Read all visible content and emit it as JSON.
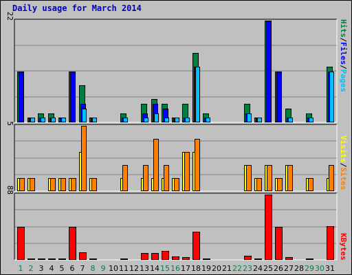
{
  "chart_data": {
    "type": "bar",
    "title": "Daily usage for March 2014",
    "categories": [
      "1",
      "2",
      "3",
      "4",
      "5",
      "6",
      "7",
      "8",
      "9",
      "10",
      "11",
      "12",
      "13",
      "14",
      "15",
      "16",
      "17",
      "18",
      "19",
      "20",
      "21",
      "22",
      "23",
      "24",
      "25",
      "26",
      "27",
      "28",
      "29",
      "30",
      "31"
    ],
    "weekend_days": [
      "1",
      "2",
      "8",
      "9",
      "15",
      "16",
      "22",
      "23",
      "29",
      "30"
    ],
    "panels": [
      {
        "name": "pages-files-hits",
        "axis_max_label": "22",
        "ylim": [
          0,
          22
        ],
        "legend": [
          "Pages",
          "/",
          "Files",
          "/",
          "Hits"
        ],
        "series": [
          {
            "name": "Hits",
            "values": [
              11,
              1,
              2,
              2,
              1,
              11,
              8,
              1,
              0,
              0,
              2,
              0,
              4,
              5,
              4,
              1,
              4,
              15,
              2,
              0,
              0,
              0,
              4,
              1,
              22,
              11,
              3,
              0,
              2,
              0,
              12
            ]
          },
          {
            "name": "Files",
            "values": [
              11,
              1,
              1,
              1,
              1,
              11,
              4,
              1,
              0,
              0,
              1,
              0,
              2,
              4,
              3,
              1,
              1,
              12,
              1,
              0,
              0,
              0,
              2,
              1,
              22,
              11,
              1,
              0,
              1,
              0,
              11
            ]
          },
          {
            "name": "Pages",
            "values": [
              0,
              1,
              1,
              1,
              1,
              0,
              3,
              1,
              0,
              0,
              1,
              0,
              1,
              2,
              1,
              1,
              1,
              12,
              1,
              0,
              0,
              0,
              2,
              1,
              0,
              0,
              1,
              0,
              1,
              0,
              11
            ]
          }
        ]
      },
      {
        "name": "visits-sites",
        "axis_max_label": "5",
        "ylim": [
          0,
          5
        ],
        "legend": [
          "Sites",
          "/",
          "Visits"
        ],
        "series": [
          {
            "name": "Visits",
            "values": [
              1,
              1,
              0,
              1,
              1,
              1,
              3,
              1,
              0,
              0,
              1,
              0,
              1,
              1,
              1,
              1,
              3,
              3,
              0,
              0,
              0,
              0,
              2,
              1,
              2,
              1,
              2,
              0,
              1,
              0,
              1
            ]
          },
          {
            "name": "Sites",
            "values": [
              1,
              1,
              0,
              1,
              1,
              1,
              5,
              1,
              0,
              0,
              2,
              0,
              2,
              4,
              2,
              1,
              3,
              4,
              0,
              0,
              0,
              0,
              2,
              1,
              2,
              1,
              2,
              0,
              1,
              0,
              2
            ]
          }
        ]
      },
      {
        "name": "kbytes",
        "axis_max_label": "88",
        "ylim": [
          0,
          88
        ],
        "legend": [
          "KBytes"
        ],
        "series": [
          {
            "name": "KBytes",
            "values": [
              44,
              1,
              1,
              1,
              1,
              44,
              10,
              1,
              0,
              0,
              1,
              0,
              9,
              9,
              12,
              5,
              4,
              38,
              1,
              0,
              0,
              0,
              6,
              1,
              88,
              44,
              4,
              0,
              1,
              0,
              45
            ]
          }
        ]
      }
    ],
    "colors": {
      "background": "#c0c0c0",
      "title": "#0000c0",
      "hits": "#008040",
      "files": "#0000ff",
      "pages": "#00c0ff",
      "visits": "#ffff00",
      "sites": "#ff8000",
      "kbytes": "#ff0000",
      "weekday_label": "#000000",
      "weekend_label": "#008040"
    }
  }
}
